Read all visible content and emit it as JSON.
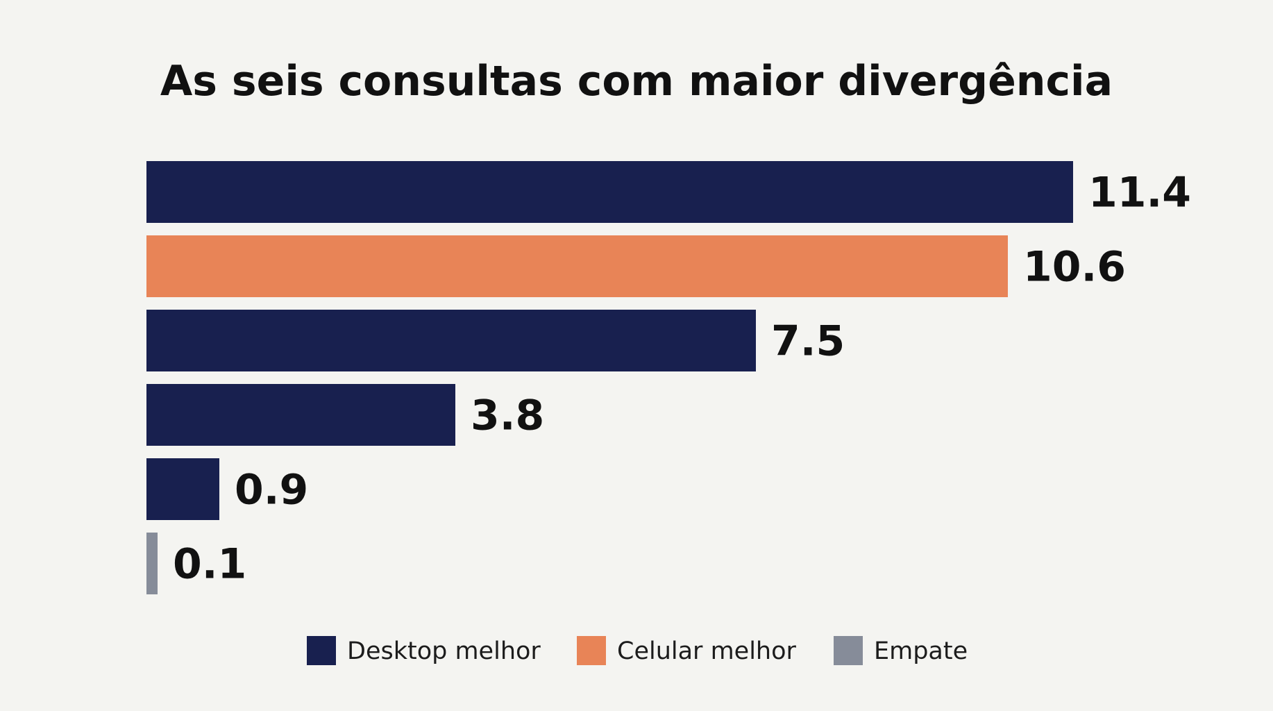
{
  "chart_data": {
    "type": "bar",
    "orientation": "horizontal",
    "title": "As seis consultas com maior divergência",
    "xlabel": "",
    "ylabel": "",
    "xlim": [
      0,
      11.4
    ],
    "grid": false,
    "legend_position": "bottom",
    "bars": [
      {
        "value": 11.4,
        "label": "11.4",
        "group": "Desktop melhor"
      },
      {
        "value": 10.6,
        "label": "10.6",
        "group": "Celular melhor"
      },
      {
        "value": 7.5,
        "label": "7.5",
        "group": "Desktop melhor"
      },
      {
        "value": 3.8,
        "label": "3.8",
        "group": "Desktop melhor"
      },
      {
        "value": 0.9,
        "label": "0.9",
        "group": "Desktop melhor"
      },
      {
        "value": 0.1,
        "label": "0.1",
        "group": "Empate"
      }
    ],
    "legend": [
      {
        "name": "Desktop melhor",
        "color": "#18204f"
      },
      {
        "name": "Celular melhor",
        "color": "#e88457"
      },
      {
        "name": "Empate",
        "color": "#868c99"
      }
    ]
  }
}
